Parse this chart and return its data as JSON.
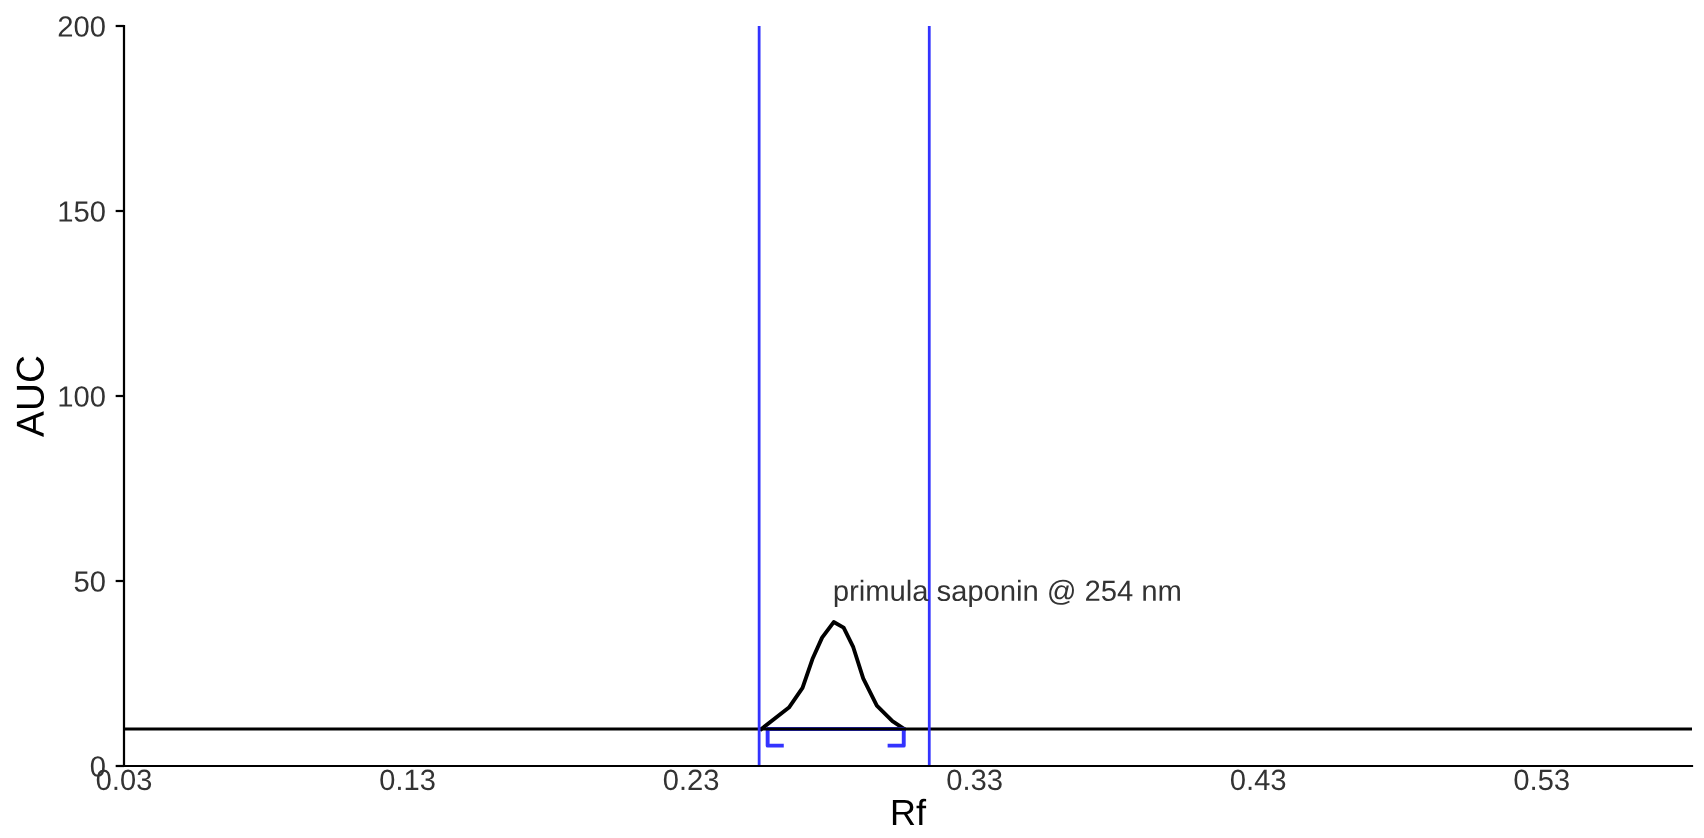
{
  "chart_data": {
    "type": "line",
    "xlabel": "Rf",
    "ylabel": "AUC",
    "xlim": [
      0.03,
      0.583
    ],
    "ylim": [
      0,
      200
    ],
    "xticks": [
      0.03,
      0.13,
      0.23,
      0.33,
      0.43,
      0.53
    ],
    "yticks": [
      0,
      50,
      100,
      150,
      200
    ],
    "grid": false,
    "legend": false,
    "marker": "none",
    "line_style": "solid",
    "series": [
      {
        "color": "#000000",
        "x": [
          0.2548,
          0.2645,
          0.2693,
          0.2728,
          0.2762,
          0.2803,
          0.2838,
          0.2872,
          0.2907,
          0.2955,
          0.301,
          0.3052
        ],
        "values": [
          10,
          15.8,
          21.1,
          28.9,
          34.7,
          38.9,
          37.4,
          32.1,
          23.7,
          16.3,
          12.1,
          10
        ]
      },
      {
        "color": "#3333ff",
        "x": [
          0.262,
          0.257,
          0.257,
          0.305,
          0.305,
          0.3
        ],
        "values": [
          5.5,
          5.5,
          10,
          10,
          5.5,
          5.5
        ]
      }
    ],
    "ref_lines": [
      {
        "axis": "y",
        "value": 10,
        "color": "#000000"
      },
      {
        "axis": "x",
        "value": 0.254,
        "color": "#3333ff"
      },
      {
        "axis": "x",
        "value": 0.314,
        "color": "#3333ff"
      }
    ],
    "annotations": [
      {
        "text": "primula saponin @ 254 nm",
        "x": 0.28,
        "y": 40
      }
    ]
  }
}
